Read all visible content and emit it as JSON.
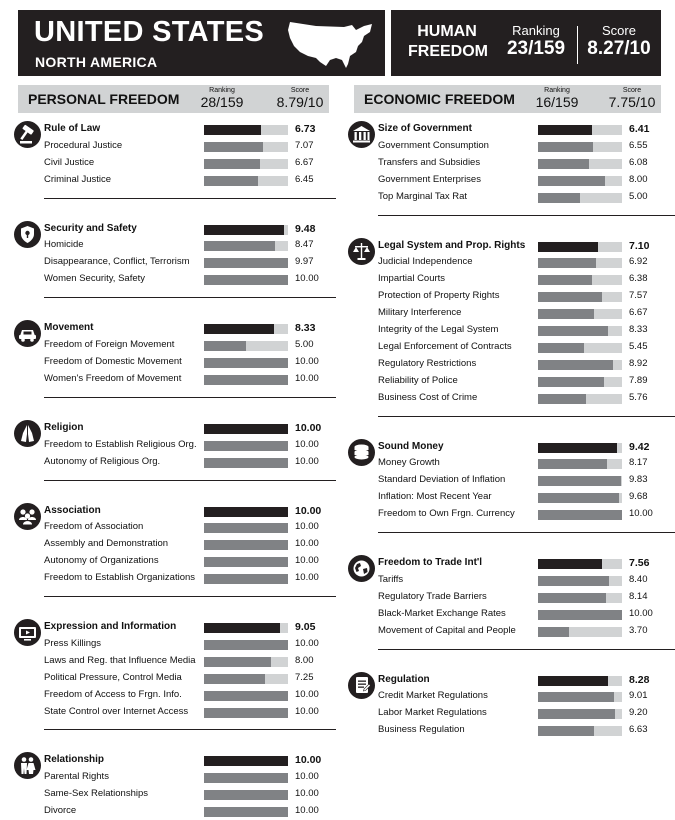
{
  "country": "UNITED STATES",
  "region": "NORTH AMERICA",
  "human_freedom": {
    "title_line1": "HUMAN",
    "title_line2": "FREEDOM",
    "ranking_label": "Ranking",
    "ranking": "23/159",
    "score_label": "Score",
    "score": "8.27/10"
  },
  "personal": {
    "title": "PERSONAL FREEDOM",
    "ranking_label": "Ranking",
    "ranking": "28/159",
    "score_label": "Score",
    "score": "8.79/10",
    "categories": [
      {
        "icon": "gavel-icon",
        "name": "Rule of Law",
        "score": "6.73",
        "items": [
          {
            "label": "Procedural Justice",
            "value": "7.07"
          },
          {
            "label": "Civil Justice",
            "value": "6.67"
          },
          {
            "label": "Criminal Justice",
            "value": "6.45"
          }
        ]
      },
      {
        "icon": "shield-icon",
        "name": "Security and Safety",
        "score": "9.48",
        "items": [
          {
            "label": "Homicide",
            "value": "8.47"
          },
          {
            "label": "Disappearance, Conflict, Terrorism",
            "value": "9.97"
          },
          {
            "label": "Women Security, Safety",
            "value": "10.00"
          }
        ]
      },
      {
        "icon": "car-icon",
        "name": "Movement",
        "score": "8.33",
        "items": [
          {
            "label": "Freedom of Foreign Movement",
            "value": "5.00"
          },
          {
            "label": "Freedom of Domestic Movement",
            "value": "10.00"
          },
          {
            "label": "Women's Freedom of Movement",
            "value": "10.00"
          }
        ]
      },
      {
        "icon": "praying-hands-icon",
        "name": "Religion",
        "score": "10.00",
        "items": [
          {
            "label": "Freedom to Establish Religious Org.",
            "value": "10.00"
          },
          {
            "label": "Autonomy of Religious Org.",
            "value": "10.00"
          }
        ]
      },
      {
        "icon": "people-group-icon",
        "name": "Association",
        "score": "10.00",
        "items": [
          {
            "label": "Freedom of Association",
            "value": "10.00"
          },
          {
            "label": "Assembly and Demonstration",
            "value": "10.00"
          },
          {
            "label": "Autonomy of Organizations",
            "value": "10.00"
          },
          {
            "label": "Freedom to Establish Organizations",
            "value": "10.00"
          }
        ]
      },
      {
        "icon": "media-screen-icon",
        "name": "Expression and Information",
        "score": "9.05",
        "items": [
          {
            "label": "Press Killings",
            "value": "10.00"
          },
          {
            "label": "Laws and Reg. that Influence Media",
            "value": "8.00"
          },
          {
            "label": "Political Pressure, Control Media",
            "value": "7.25"
          },
          {
            "label": "Freedom of Access to Frgn. Info.",
            "value": "10.00"
          },
          {
            "label": "State Control over Internet Access",
            "value": "10.00"
          }
        ]
      },
      {
        "icon": "couple-icon",
        "name": "Relationship",
        "score": "10.00",
        "items": [
          {
            "label": "Parental Rights",
            "value": "10.00"
          },
          {
            "label": "Same-Sex Relationships",
            "value": "10.00"
          },
          {
            "label": "Divorce",
            "value": "10.00"
          }
        ]
      }
    ]
  },
  "economic": {
    "title": "ECONOMIC FREEDOM",
    "ranking_label": "Ranking",
    "ranking": "16/159",
    "score_label": "Score",
    "score": "7.75/10",
    "categories": [
      {
        "icon": "government-building-icon",
        "name": "Size of Government",
        "score": "6.41",
        "items": [
          {
            "label": "Government Consumption",
            "value": "6.55"
          },
          {
            "label": "Transfers and Subsidies",
            "value": "6.08"
          },
          {
            "label": "Government Enterprises",
            "value": "8.00"
          },
          {
            "label": "Top Marginal Tax Rat",
            "value": "5.00"
          }
        ]
      },
      {
        "icon": "scales-icon",
        "name": "Legal System and Prop. Rights",
        "score": "7.10",
        "items": [
          {
            "label": "Judicial Independence",
            "value": "6.92"
          },
          {
            "label": "Impartial Courts",
            "value": "6.38"
          },
          {
            "label": "Protection of Property Rights",
            "value": "7.57"
          },
          {
            "label": "Military Interference",
            "value": "6.67"
          },
          {
            "label": "Integrity of the Legal System",
            "value": "8.33"
          },
          {
            "label": "Legal Enforcement of Contracts",
            "value": "5.45"
          },
          {
            "label": "Regulatory Restrictions",
            "value": "8.92"
          },
          {
            "label": "Reliability of Police",
            "value": "7.89"
          },
          {
            "label": "Business Cost of Crime",
            "value": "5.76"
          }
        ]
      },
      {
        "icon": "coins-icon",
        "name": "Sound Money",
        "score": "9.42",
        "items": [
          {
            "label": "Money Growth",
            "value": "8.17"
          },
          {
            "label": "Standard Deviation of Inflation",
            "value": "9.83"
          },
          {
            "label": "Inflation: Most Recent Year",
            "value": "9.68"
          },
          {
            "label": "Freedom to Own Frgn. Currency",
            "value": "10.00"
          }
        ]
      },
      {
        "icon": "globe-icon",
        "name": "Freedom to Trade Int'l",
        "score": "7.56",
        "items": [
          {
            "label": "Tariffs",
            "value": "8.40"
          },
          {
            "label": "Regulatory Trade Barriers",
            "value": "8.14"
          },
          {
            "label": "Black-Market Exchange Rates",
            "value": "10.00"
          },
          {
            "label": "Movement of Capital and People",
            "value": "3.70"
          }
        ]
      },
      {
        "icon": "document-icon",
        "name": "Regulation",
        "score": "8.28",
        "items": [
          {
            "label": "Credit Market Regulations",
            "value": "9.01"
          },
          {
            "label": "Labor Market Regulations",
            "value": "9.20"
          },
          {
            "label": "Business Regulation",
            "value": "6.63"
          }
        ]
      }
    ]
  }
}
